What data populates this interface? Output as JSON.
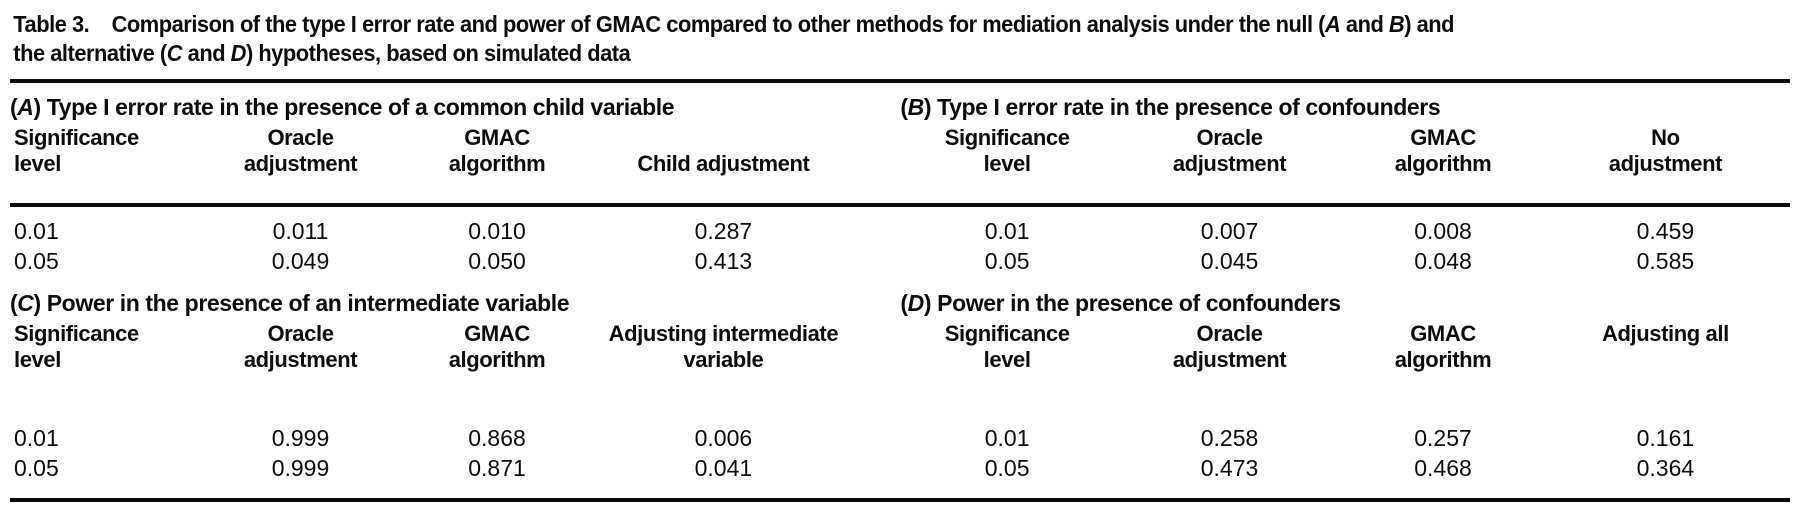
{
  "caption": {
    "segments": [
      {
        "t": "Table 3.    Comparison of the type I error rate and power of GMAC compared to other methods for mediation analysis under the null ("
      },
      {
        "t": "A",
        "i": true
      },
      {
        "t": " and "
      },
      {
        "t": "B",
        "i": true
      },
      {
        "t": ") and",
        "i": false
      },
      {
        "t": "\n"
      },
      {
        "t": "the alternative ("
      },
      {
        "t": "C",
        "i": true
      },
      {
        "t": " and "
      },
      {
        "t": "D",
        "i": true
      },
      {
        "t": ") hypotheses, based on simulated data"
      }
    ]
  },
  "colors": {
    "ink": "#0c0c0c",
    "background": "#ffffff"
  },
  "panels": [
    {
      "key": "A",
      "title_open": "(",
      "title_letter": "A",
      "title_rest": ") Type I error rate in the presence of a common child variable",
      "columns": [
        {
          "line1": "Significance",
          "line2": "level"
        },
        {
          "line1": "Oracle",
          "line2": "adjustment"
        },
        {
          "line1": "GMAC",
          "line2": "algorithm"
        },
        {
          "line1": "",
          "line2": "Child adjustment"
        }
      ],
      "rows": [
        [
          "0.01",
          "0.011",
          "0.010",
          "0.287"
        ],
        [
          "0.05",
          "0.049",
          "0.050",
          "0.413"
        ]
      ]
    },
    {
      "key": "B",
      "title_open": "(",
      "title_letter": "B",
      "title_rest": ") Type I error rate in the presence of confounders",
      "columns": [
        {
          "line1": "Significance",
          "line2": "level"
        },
        {
          "line1": "Oracle",
          "line2": "adjustment"
        },
        {
          "line1": "GMAC",
          "line2": "algorithm"
        },
        {
          "line1": "No",
          "line2": "adjustment"
        }
      ],
      "rows": [
        [
          "0.01",
          "0.007",
          "0.008",
          "0.459"
        ],
        [
          "0.05",
          "0.045",
          "0.048",
          "0.585"
        ]
      ]
    },
    {
      "key": "C",
      "title_open": "(",
      "title_letter": "C",
      "title_rest": ") Power in the presence of an intermediate variable",
      "columns": [
        {
          "line1": "Significance",
          "line2": "level"
        },
        {
          "line1": "Oracle",
          "line2": "adjustment"
        },
        {
          "line1": "GMAC",
          "line2": "algorithm"
        },
        {
          "line1": "Adjusting intermediate",
          "line2": "variable"
        }
      ],
      "rows": [
        [
          "0.01",
          "0.999",
          "0.868",
          "0.006"
        ],
        [
          "0.05",
          "0.999",
          "0.871",
          "0.041"
        ]
      ]
    },
    {
      "key": "D",
      "title_open": "(",
      "title_letter": "D",
      "title_rest": ") Power in the presence of confounders",
      "columns": [
        {
          "line1": "Significance",
          "line2": "level"
        },
        {
          "line1": "Oracle",
          "line2": "adjustment"
        },
        {
          "line1": "GMAC",
          "line2": "algorithm"
        },
        {
          "line1": "Adjusting all",
          "line2": ""
        }
      ],
      "rows": [
        [
          "0.01",
          "0.258",
          "0.257",
          "0.161"
        ],
        [
          "0.05",
          "0.473",
          "0.468",
          "0.364"
        ]
      ]
    }
  ]
}
